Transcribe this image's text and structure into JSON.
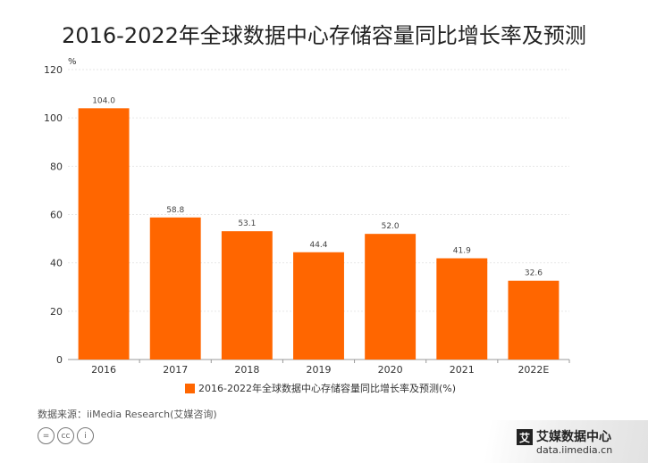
{
  "title": "2016-2022年全球数据中心存储容量同比增长率及预测",
  "unit_label": "%",
  "legend_label": "2016-2022年全球数据中心存储容量同比增长率及预测(%)",
  "source": "数据来源：iiMedia Research(艾媒咨询)",
  "cc_icons": [
    "equals-icon",
    "cc-icon",
    "person-icon"
  ],
  "cc_glyphs": [
    "=",
    "cc",
    "i"
  ],
  "brand": {
    "logo_char": "艾",
    "name": "艾媒数据中心",
    "url": "data.iimedia.cn"
  },
  "colors": {
    "bar": "#ff6600"
  },
  "chart_data": {
    "type": "bar",
    "categories": [
      "2016",
      "2017",
      "2018",
      "2019",
      "2020",
      "2021",
      "2022E"
    ],
    "series": [
      {
        "name": "2016-2022年全球数据中心存储容量同比增长率及预测(%)",
        "values": [
          104.0,
          58.8,
          53.1,
          44.4,
          52.0,
          41.9,
          32.6
        ],
        "labels": [
          "104.0",
          "58.8",
          "53.1",
          "44.4",
          "52.0",
          "41.9",
          "32.6"
        ]
      }
    ],
    "title": "2016-2022年全球数据中心存储容量同比增长率及预测",
    "xlabel": "",
    "ylabel": "%",
    "ylim": [
      0,
      120
    ],
    "yticks": [
      0,
      20,
      40,
      60,
      80,
      100,
      120
    ],
    "grid": true,
    "legend": "bottom"
  }
}
